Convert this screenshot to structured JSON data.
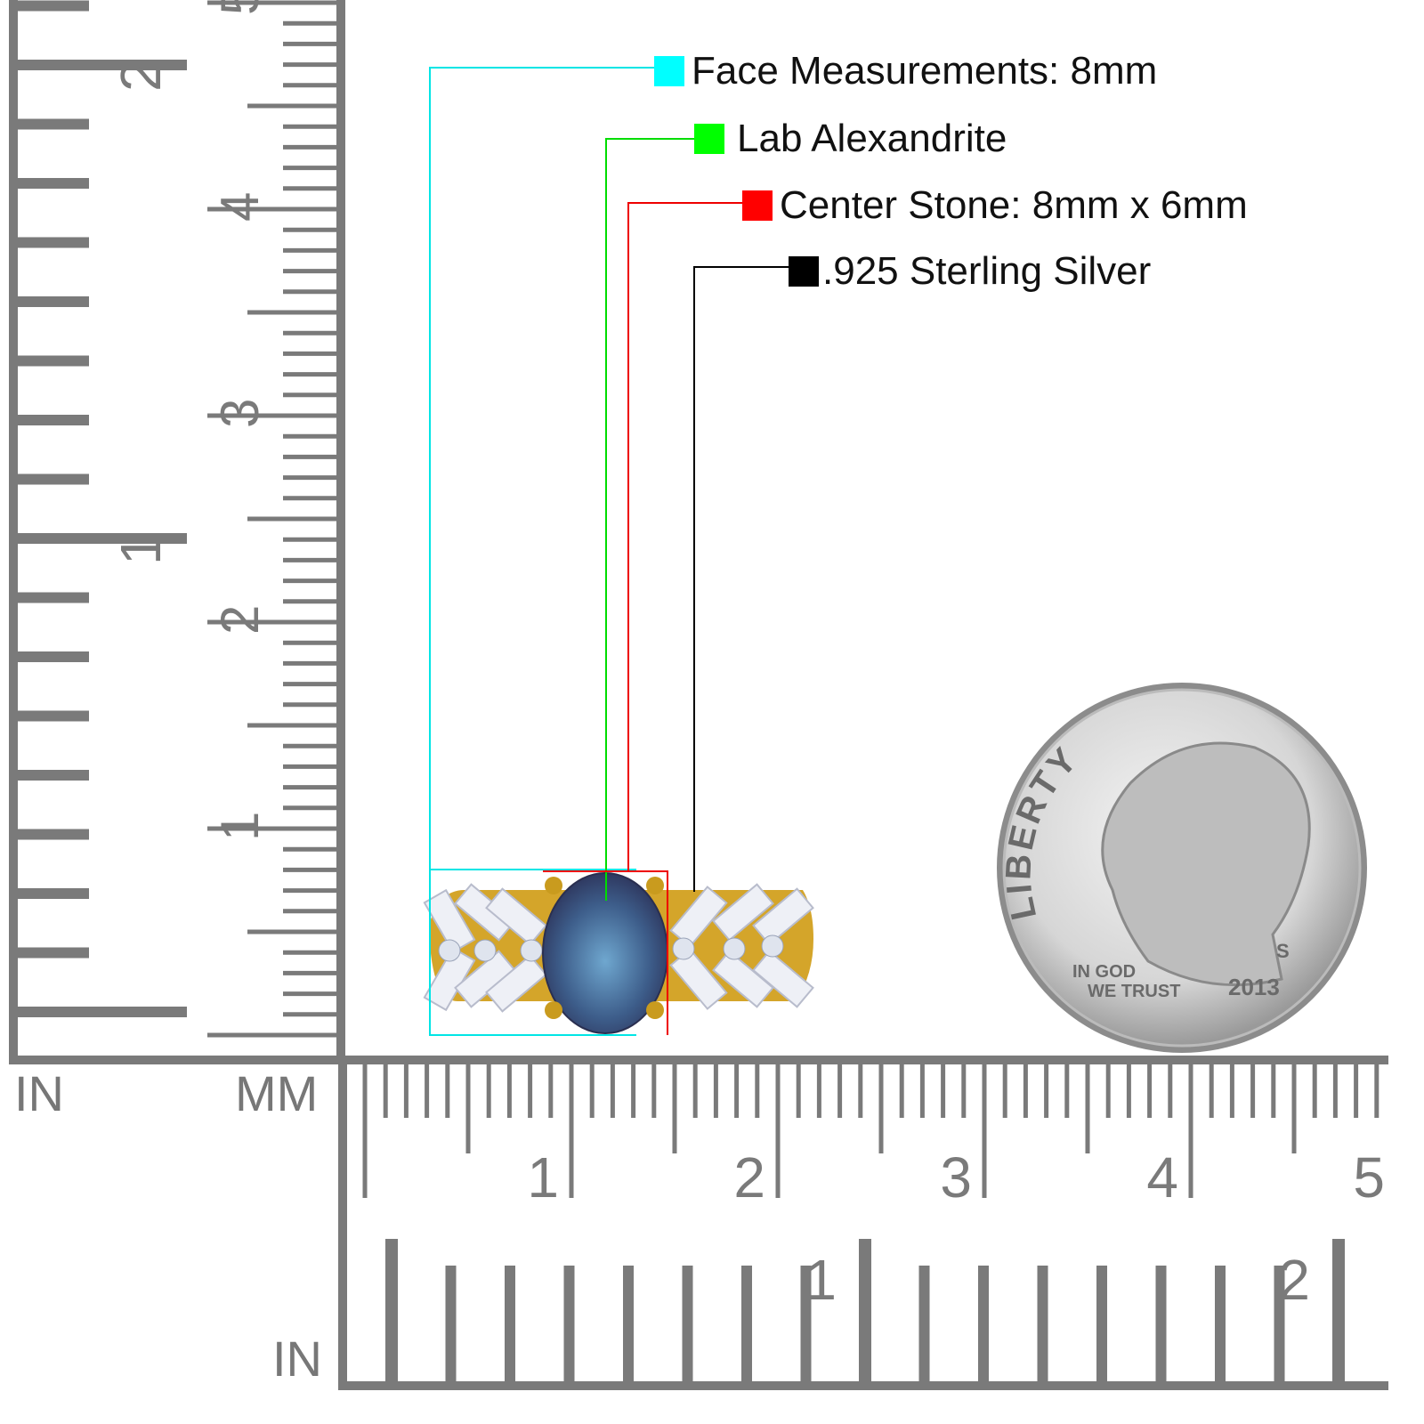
{
  "legend": [
    {
      "label": "Face Measurements: 8mm",
      "color": "#00ffff"
    },
    {
      "label": "Lab Alexandrite",
      "color": "#00ff00"
    },
    {
      "label": "Center Stone: 8mm x 6mm",
      "color": "#ff0000"
    },
    {
      "label": ".925 Sterling Silver",
      "color": "#000000"
    }
  ],
  "rulers": {
    "in_label_left": "IN",
    "mm_label": "MM",
    "in_label_bottom": "IN",
    "cm_ticks": [
      "1",
      "2",
      "3",
      "4",
      "5"
    ],
    "inch_ticks": [
      "1",
      "2"
    ],
    "color": "#7a7a7a"
  },
  "coin": {
    "liberty": "LIBERTY",
    "motto_1": "IN GOD",
    "motto_2": "WE TRUST",
    "year": "2013",
    "mint": "S"
  },
  "product": {
    "metal_color": "#d4a52a",
    "stone_color": "#3d5d8a"
  }
}
